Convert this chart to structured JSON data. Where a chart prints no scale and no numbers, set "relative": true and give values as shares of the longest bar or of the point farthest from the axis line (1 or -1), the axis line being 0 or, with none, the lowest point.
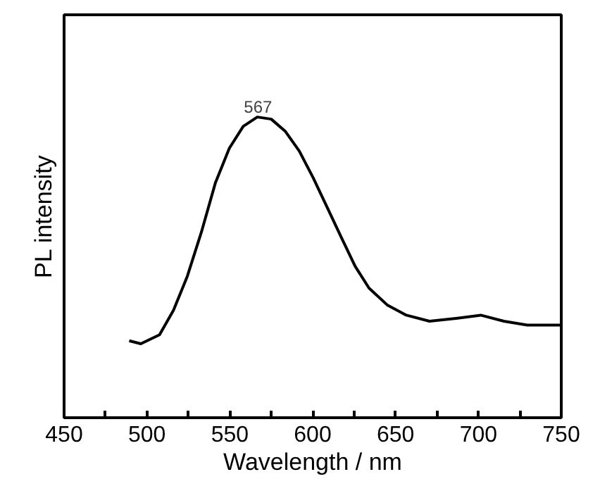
{
  "chart_data": {
    "type": "line",
    "xlabel": "Wavelength / nm",
    "ylabel": "PL intensity",
    "relative": true,
    "x": [
      489.3,
      496.3,
      507.6,
      516,
      524.4,
      532.9,
      541.3,
      549.7,
      558.1,
      566.6,
      575,
      583.4,
      591.9,
      600.3,
      608.7,
      617.1,
      625.6,
      634,
      645.2,
      656.5,
      670.5,
      687.4,
      701.4,
      715.4,
      729.5,
      749.2
    ],
    "series": [
      {
        "color": "#000000",
        "values": [
          0.256,
          0.246,
          0.276,
          0.357,
          0.471,
          0.618,
          0.781,
          0.896,
          0.969,
          1.0,
          0.993,
          0.953,
          0.887,
          0.798,
          0.7,
          0.602,
          0.504,
          0.431,
          0.374,
          0.341,
          0.321,
          0.331,
          0.341,
          0.321,
          0.308,
          0.308
        ]
      }
    ],
    "xlim": [
      450,
      750
    ],
    "xticks": [
      450,
      {
        "value": 475,
        "label": null
      },
      500,
      {
        "value": 525,
        "label": null
      },
      550,
      {
        "value": 575,
        "label": null
      },
      600,
      {
        "value": 625,
        "label": null
      },
      650,
      {
        "value": 675,
        "label": null
      },
      700,
      {
        "value": 725,
        "label": null
      },
      750
    ],
    "annotations": [
      {
        "text": "567",
        "x": 567,
        "y": 1.0
      }
    ],
    "grid": false,
    "marker": "none",
    "line_style": "solid"
  }
}
